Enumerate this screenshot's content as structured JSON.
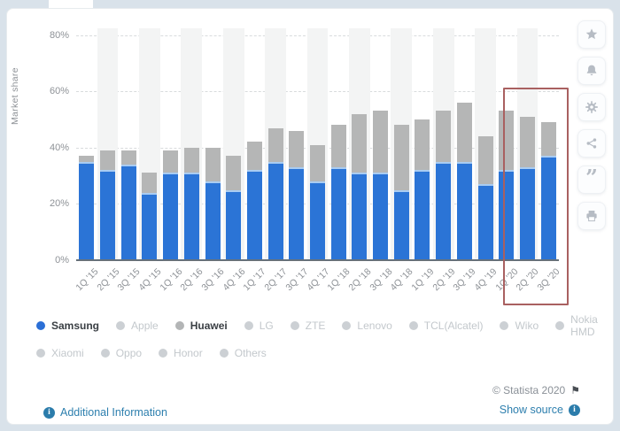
{
  "chart_data": {
    "type": "bar",
    "stacked": true,
    "ylabel": "Market share",
    "ylim": [
      0,
      82
    ],
    "yticks": [
      "0%",
      "20%",
      "40%",
      "60%",
      "80%"
    ],
    "grid": "horizontal-dashed",
    "legend_position": "bottom",
    "categories": [
      "1Q '15",
      "2Q '15",
      "3Q '15",
      "4Q '15",
      "1Q '16",
      "2Q '16",
      "3Q '16",
      "4Q '16",
      "1Q '17",
      "2Q '17",
      "3Q '17",
      "4Q '17",
      "1Q '18",
      "2Q '18",
      "3Q '18",
      "4Q '18",
      "1Q '19",
      "2Q '19",
      "3Q '19",
      "4Q '19",
      "1Q '20",
      "2Q '20",
      "3Q '20"
    ],
    "series": [
      {
        "name": "Samsung",
        "color": "#2b74d6",
        "values": [
          35,
          32,
          34,
          24,
          31,
          31,
          28,
          25,
          32,
          35,
          33,
          28,
          33,
          31,
          31,
          25,
          32,
          35,
          35,
          27,
          32,
          33,
          37
        ]
      },
      {
        "name": "Huawei",
        "color": "#b5b6b6",
        "values": [
          2,
          7,
          5,
          7,
          8,
          9,
          12,
          12,
          10,
          12,
          13,
          13,
          15,
          21,
          22,
          23,
          18,
          18,
          21,
          17,
          21,
          18,
          12
        ]
      }
    ],
    "highlight": {
      "categories": [
        "1Q '20",
        "2Q '20",
        "3Q '20"
      ],
      "color": "#a96060"
    }
  },
  "legend": {
    "rows": [
      [
        {
          "label": "Samsung",
          "active": true,
          "dot": "#2b6fd6"
        },
        {
          "label": "Apple",
          "active": false,
          "dot": "#ccd0d4"
        },
        {
          "label": "Huawei",
          "active": true,
          "dot": "#b3b5b6"
        },
        {
          "label": "LG",
          "active": false,
          "dot": "#ccd0d4"
        },
        {
          "label": "ZTE",
          "active": false,
          "dot": "#ccd0d4"
        },
        {
          "label": "Lenovo",
          "active": false,
          "dot": "#ccd0d4"
        },
        {
          "label": "TCL(Alcatel)",
          "active": false,
          "dot": "#ccd0d4"
        },
        {
          "label": "Wiko",
          "active": false,
          "dot": "#ccd0d4"
        },
        {
          "label": "Nokia HMD",
          "active": false,
          "dot": "#ccd0d4"
        }
      ],
      [
        {
          "label": "Xiaomi",
          "active": false,
          "dot": "#ccd0d4"
        },
        {
          "label": "Oppo",
          "active": false,
          "dot": "#ccd0d4"
        },
        {
          "label": "Honor",
          "active": false,
          "dot": "#ccd0d4"
        },
        {
          "label": "Others",
          "active": false,
          "dot": "#ccd0d4"
        }
      ]
    ]
  },
  "toolbar": {
    "buttons": [
      {
        "name": "favorite",
        "icon": "star-icon"
      },
      {
        "name": "notifications",
        "icon": "bell-icon"
      },
      {
        "name": "settings",
        "icon": "gear-icon"
      },
      {
        "name": "share",
        "icon": "share-icon"
      },
      {
        "name": "cite",
        "icon": "quote-icon"
      },
      {
        "name": "print",
        "icon": "printer-icon"
      }
    ]
  },
  "footer": {
    "copyright": "© Statista 2020",
    "additional_info": "Additional Information",
    "show_source": "Show source"
  },
  "icons": {
    "quote_glyph": "”",
    "flag_glyph": "⚑",
    "info_glyph": "i"
  }
}
